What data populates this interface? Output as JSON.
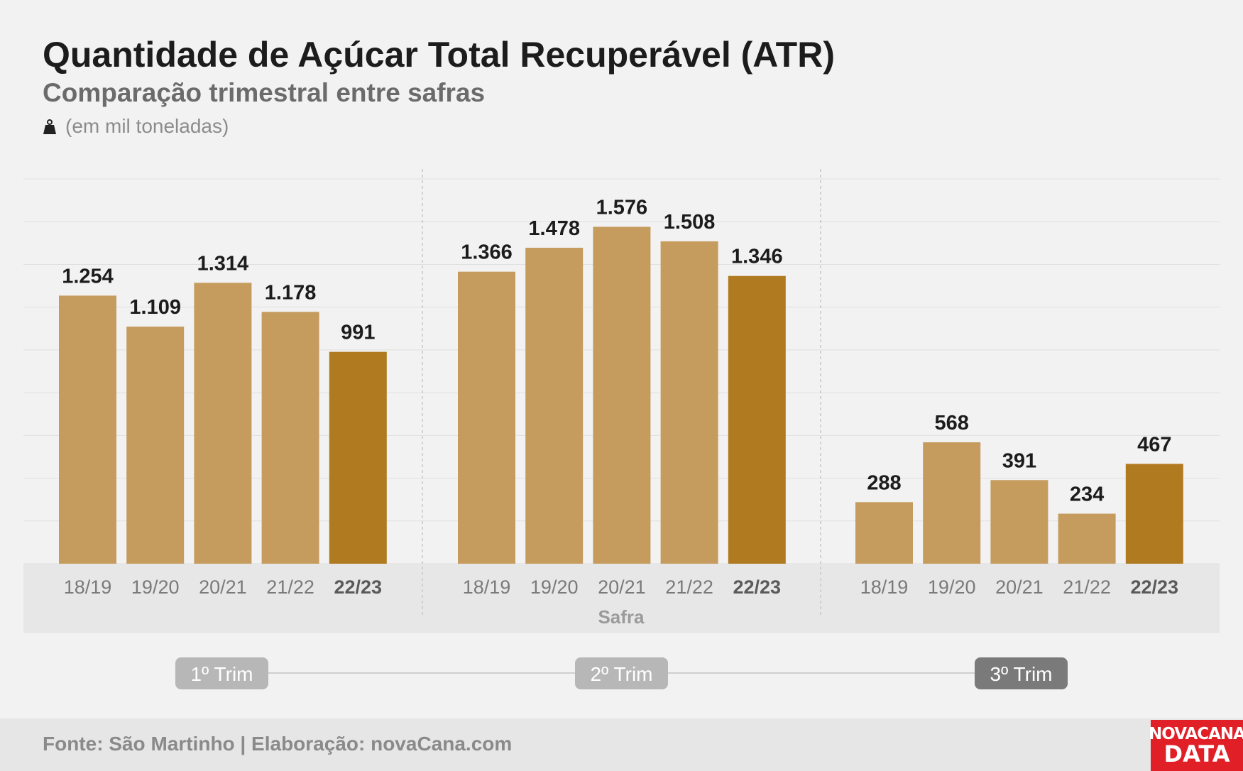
{
  "header": {
    "title": "Quantidade de Açúcar Total Recuperável (ATR)",
    "subtitle": "Comparação trimestral entre safras",
    "unit": "(em mil toneladas)",
    "unit_icon": "weight-icon"
  },
  "chart_data": {
    "type": "bar",
    "title": "Quantidade de Açúcar Total Recuperável (ATR)",
    "subtitle": "Comparação trimestral entre safras",
    "ylabel": "(em mil toneladas)",
    "xlabel": "Safra",
    "ylim": [
      0,
      1800
    ],
    "grid": true,
    "highlight_category": "22/23",
    "colors": {
      "bar": "#c59c5e",
      "highlight": "#b07a20"
    },
    "groups": [
      {
        "label": "1º Trim",
        "active": false,
        "categories": [
          "18/19",
          "19/20",
          "20/21",
          "21/22",
          "22/23"
        ],
        "values": [
          1254,
          1109,
          1314,
          1178,
          991
        ],
        "value_labels": [
          "1.254",
          "1.109",
          "1.314",
          "1.178",
          "991"
        ]
      },
      {
        "label": "2º Trim",
        "active": false,
        "categories": [
          "18/19",
          "19/20",
          "20/21",
          "21/22",
          "22/23"
        ],
        "values": [
          1366,
          1478,
          1576,
          1508,
          1346
        ],
        "value_labels": [
          "1.366",
          "1.478",
          "1.576",
          "1.508",
          "1.346"
        ]
      },
      {
        "label": "3º Trim",
        "active": true,
        "categories": [
          "18/19",
          "19/20",
          "20/21",
          "21/22",
          "22/23"
        ],
        "values": [
          288,
          568,
          391,
          234,
          467
        ],
        "value_labels": [
          "288",
          "568",
          "391",
          "234",
          "467"
        ]
      }
    ]
  },
  "footer": {
    "source": "Fonte: São Martinho | Elaboração: novaCana.com",
    "logo_line1": "NOVACANA",
    "logo_line2": "DATA"
  }
}
